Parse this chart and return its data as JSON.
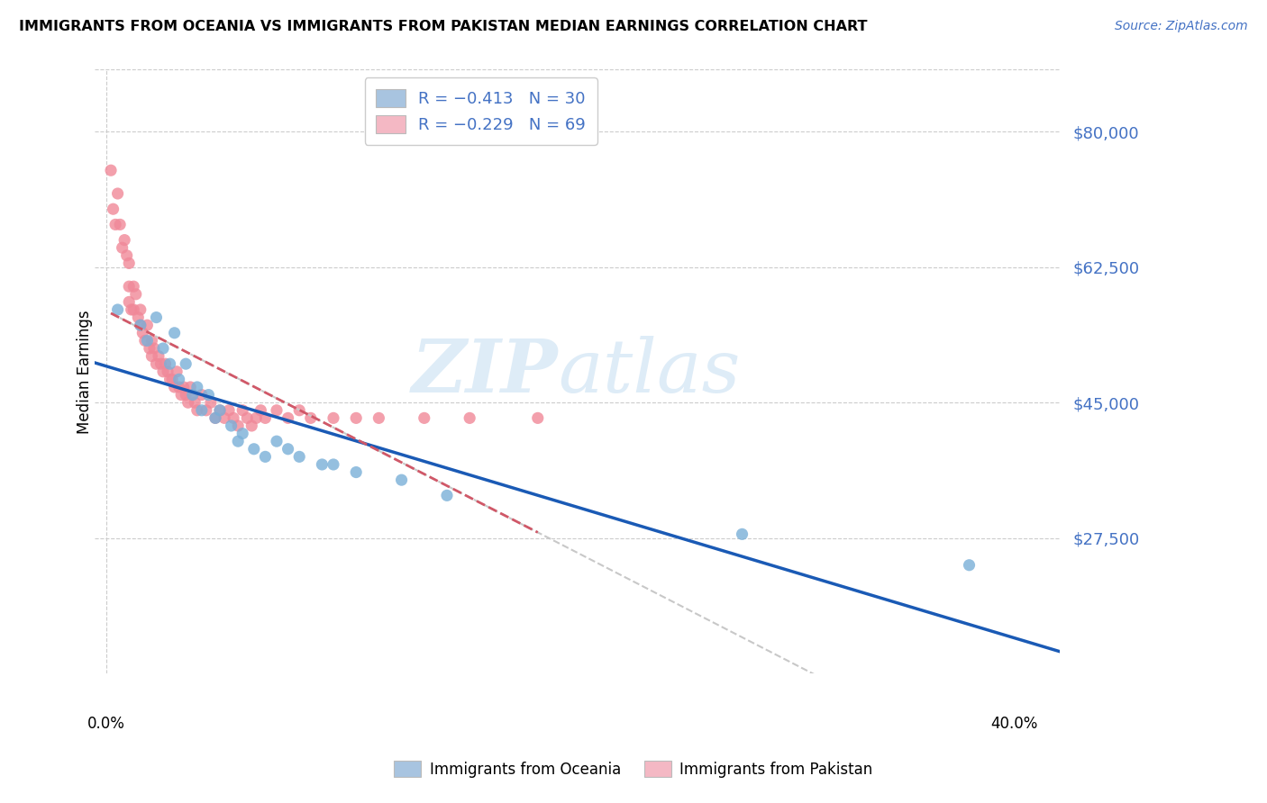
{
  "title": "IMMIGRANTS FROM OCEANIA VS IMMIGRANTS FROM PAKISTAN MEDIAN EARNINGS CORRELATION CHART",
  "source": "Source: ZipAtlas.com",
  "ylabel": "Median Earnings",
  "ylim": [
    10000,
    88000
  ],
  "xlim": [
    -0.005,
    0.42
  ],
  "watermark_zip": "ZIP",
  "watermark_atlas": "atlas",
  "legend_1_label": "R = −0.413   N = 30",
  "legend_2_label": "R = −0.229   N = 69",
  "legend_color_1": "#a8c4e0",
  "legend_color_2": "#f4b8c4",
  "scatter_oceania_color": "#7ab0d8",
  "scatter_pakistan_color": "#f08898",
  "trendline_oceania_color": "#1a5ab5",
  "trendline_pakistan_color": "#d05868",
  "trendline_dashed_color": "#c8c8c8",
  "grid_color": "#cccccc",
  "background_color": "#ffffff",
  "ytick_positions": [
    27500,
    45000,
    62500,
    80000
  ],
  "ytick_labels": [
    "$27,500",
    "$45,000",
    "$62,500",
    "$80,000"
  ],
  "oceania_x": [
    0.005,
    0.015,
    0.018,
    0.022,
    0.025,
    0.028,
    0.03,
    0.032,
    0.035,
    0.038,
    0.04,
    0.042,
    0.045,
    0.048,
    0.05,
    0.055,
    0.058,
    0.06,
    0.065,
    0.07,
    0.075,
    0.08,
    0.085,
    0.095,
    0.1,
    0.11,
    0.13,
    0.15,
    0.28,
    0.38
  ],
  "oceania_y": [
    57000,
    55000,
    53000,
    56000,
    52000,
    50000,
    54000,
    48000,
    50000,
    46000,
    47000,
    44000,
    46000,
    43000,
    44000,
    42000,
    40000,
    41000,
    39000,
    38000,
    40000,
    39000,
    38000,
    37000,
    37000,
    36000,
    35000,
    33000,
    28000,
    24000
  ],
  "pakistan_x": [
    0.002,
    0.003,
    0.004,
    0.005,
    0.006,
    0.007,
    0.008,
    0.009,
    0.01,
    0.01,
    0.01,
    0.011,
    0.012,
    0.012,
    0.013,
    0.014,
    0.015,
    0.015,
    0.016,
    0.017,
    0.018,
    0.019,
    0.02,
    0.02,
    0.021,
    0.022,
    0.023,
    0.024,
    0.025,
    0.026,
    0.027,
    0.028,
    0.029,
    0.03,
    0.031,
    0.032,
    0.033,
    0.034,
    0.035,
    0.036,
    0.037,
    0.038,
    0.039,
    0.04,
    0.042,
    0.044,
    0.046,
    0.048,
    0.05,
    0.052,
    0.054,
    0.056,
    0.058,
    0.06,
    0.062,
    0.064,
    0.066,
    0.068,
    0.07,
    0.075,
    0.08,
    0.085,
    0.09,
    0.1,
    0.11,
    0.12,
    0.14,
    0.16,
    0.19
  ],
  "pakistan_y": [
    75000,
    70000,
    68000,
    72000,
    68000,
    65000,
    66000,
    64000,
    63000,
    60000,
    58000,
    57000,
    60000,
    57000,
    59000,
    56000,
    57000,
    55000,
    54000,
    53000,
    55000,
    52000,
    53000,
    51000,
    52000,
    50000,
    51000,
    50000,
    49000,
    50000,
    49000,
    48000,
    48000,
    47000,
    49000,
    47000,
    46000,
    47000,
    46000,
    45000,
    47000,
    46000,
    45000,
    44000,
    46000,
    44000,
    45000,
    43000,
    44000,
    43000,
    44000,
    43000,
    42000,
    44000,
    43000,
    42000,
    43000,
    44000,
    43000,
    44000,
    43000,
    44000,
    43000,
    43000,
    43000,
    43000,
    43000,
    43000,
    43000
  ]
}
